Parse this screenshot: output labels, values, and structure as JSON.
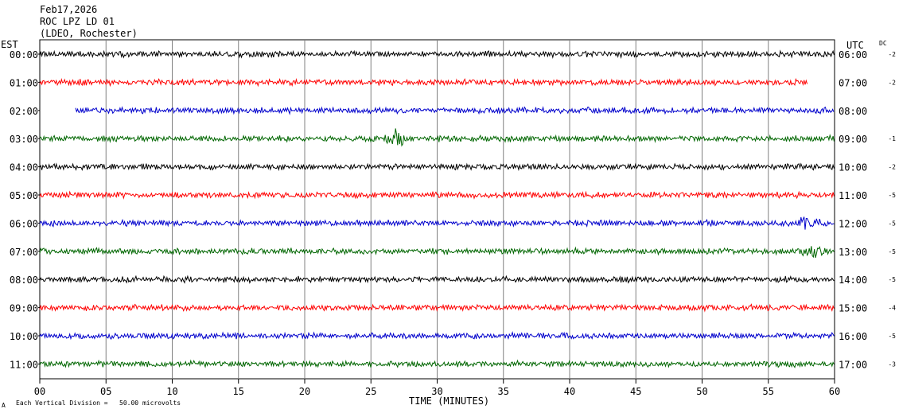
{
  "header": {
    "date": "Feb17,2026",
    "station": "ROC LPZ LD 01",
    "network": "(LDEO, Rochester)"
  },
  "left_axis_label": "EST",
  "right_axis_label": "UTC",
  "dc_label": "DC",
  "x_axis_title": "TIME (MINUTES)",
  "footer": {
    "symbol": "A",
    "scale_note": "Each Vertical Division =   50.00 microvolts"
  },
  "colors": {
    "black": "#000000",
    "red": "#ff0000",
    "blue": "#0000cc",
    "green": "#006600",
    "grid": "#808080"
  },
  "chart_data": {
    "type": "line",
    "title": "Feb17,2026 ROC LPZ LD 01 (LDEO, Rochester)",
    "xlabel": "TIME (MINUTES)",
    "xlim": [
      0,
      60
    ],
    "x_ticks": [
      "00",
      "05",
      "10",
      "15",
      "20",
      "25",
      "30",
      "35",
      "40",
      "45",
      "50",
      "55",
      "60"
    ],
    "grid": "vertical lines every 5 minutes",
    "rows": [
      {
        "est": "00:00",
        "utc": "06:00",
        "dc": "-2",
        "color": "black",
        "start_min": 0,
        "end_min": 60,
        "events": []
      },
      {
        "est": "01:00",
        "utc": "07:00",
        "dc": "-2",
        "color": "red",
        "start_min": 0,
        "end_min": 58,
        "events": []
      },
      {
        "est": "02:00",
        "utc": "08:00",
        "dc": "",
        "color": "blue",
        "start_min": 2.7,
        "end_min": 60,
        "events": []
      },
      {
        "est": "03:00",
        "utc": "09:00",
        "dc": "-1",
        "color": "green",
        "start_min": 0,
        "end_min": 60,
        "events": [
          {
            "minute": 27,
            "amplitude": 2.4
          }
        ]
      },
      {
        "est": "04:00",
        "utc": "10:00",
        "dc": "-2",
        "color": "black",
        "start_min": 0,
        "end_min": 60,
        "events": []
      },
      {
        "est": "05:00",
        "utc": "11:00",
        "dc": "-5",
        "color": "red",
        "start_min": 0,
        "end_min": 60,
        "events": []
      },
      {
        "est": "06:00",
        "utc": "12:00",
        "dc": "-5",
        "color": "blue",
        "start_min": 0,
        "end_min": 60,
        "events": [
          {
            "minute": 58,
            "amplitude": 1.6
          }
        ]
      },
      {
        "est": "07:00",
        "utc": "13:00",
        "dc": "-5",
        "color": "green",
        "start_min": 0,
        "end_min": 60,
        "events": [
          {
            "minute": 58.6,
            "amplitude": 1.6
          }
        ]
      },
      {
        "est": "08:00",
        "utc": "14:00",
        "dc": "-5",
        "color": "black",
        "start_min": 0,
        "end_min": 60,
        "events": []
      },
      {
        "est": "09:00",
        "utc": "15:00",
        "dc": "-4",
        "color": "red",
        "start_min": 0,
        "end_min": 60,
        "events": []
      },
      {
        "est": "10:00",
        "utc": "16:00",
        "dc": "-5",
        "color": "blue",
        "start_min": 0,
        "end_min": 60,
        "events": []
      },
      {
        "est": "11:00",
        "utc": "17:00",
        "dc": "-3",
        "color": "green",
        "start_min": 0,
        "end_min": 60,
        "events": []
      }
    ]
  }
}
